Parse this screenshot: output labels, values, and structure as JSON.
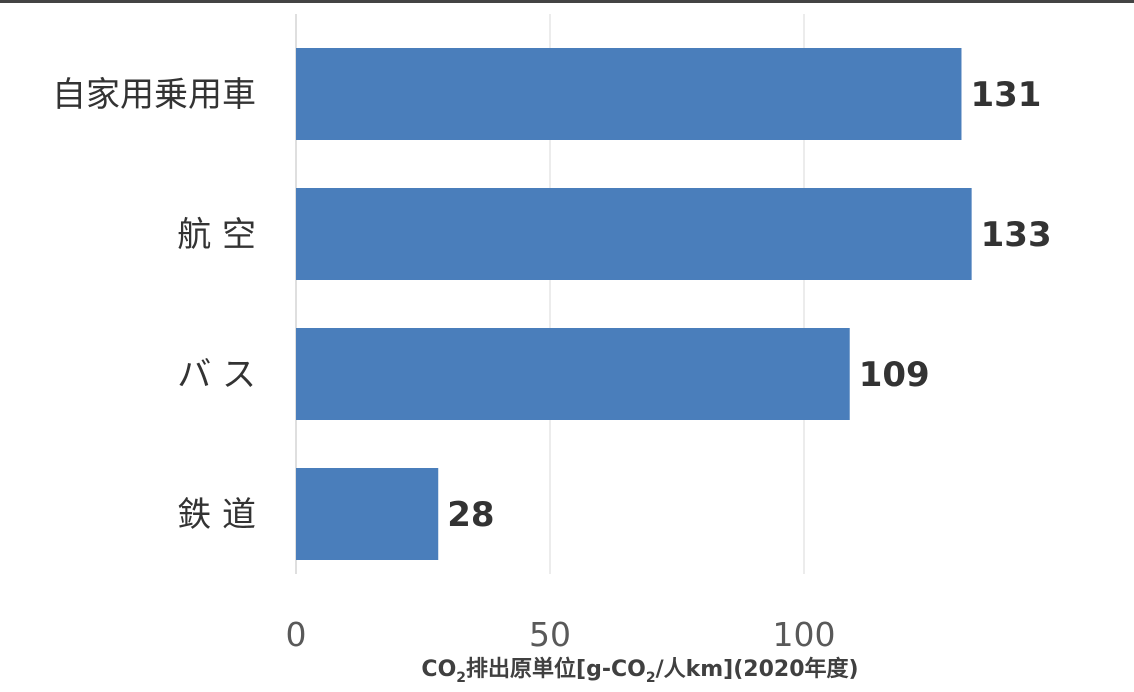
{
  "chart_data": {
    "type": "bar",
    "orientation": "horizontal",
    "categories": [
      "自家用乗用車",
      "航 空",
      "バ ス",
      "鉄 道"
    ],
    "values": [
      131,
      133,
      109,
      28
    ],
    "data_labels": [
      "131",
      "133",
      "109",
      "28"
    ],
    "xlim": [
      0,
      133
    ],
    "xticks": [
      0,
      50,
      100
    ],
    "xtick_labels": [
      "0",
      "50",
      "100"
    ],
    "xlabel": {
      "part1": "CO",
      "sub1": "2",
      "part2": "排出原単位[g-CO",
      "sub2": "2",
      "part3": "/人km](2020年度)"
    },
    "grid": "vertical",
    "bar_color": "#4a7ebb",
    "grid_color": "#d9d9d9"
  }
}
